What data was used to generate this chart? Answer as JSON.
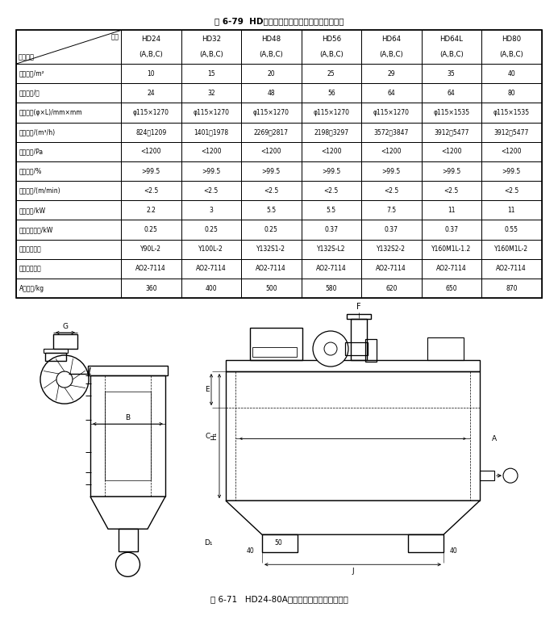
{
  "title": "表 6-79  HD型庫頂機械振打袋式除塵器技術性能",
  "col_headers": [
    "HD24\n(A,B,C)",
    "HD32\n(A,B,C)",
    "HD48\n(A,B,C)",
    "HD56\n(A,B,C)",
    "HD64\n(A,B,C)",
    "HD64L\n(A,B,C)",
    "HD80\n(A,B,C)"
  ],
  "row_labels": [
    "過濾面積/m²",
    "濾袋數量/個",
    "濾袋規格(φ×L)/mm×mm",
    "處理風量/(m³/h)",
    "設備阻力/Pa",
    "除塵效率/%",
    "過濾風速/(m/min)",
    "風機功率/kW",
    "清灰電機功率/kW",
    "風機電機型號",
    "清灰電機型號",
    "A型質量/kg"
  ],
  "table_data": [
    [
      "10",
      "15",
      "20",
      "25",
      "29",
      "35",
      "40"
    ],
    [
      "24",
      "32",
      "48",
      "56",
      "64",
      "64",
      "80"
    ],
    [
      "φ115×1270",
      "φ115×1270",
      "φ115×1270",
      "φ115×1270",
      "φ115×1270",
      "φ115×1535",
      "φ115×1535"
    ],
    [
      "824～1209",
      "1401～1978",
      "2269～2817",
      "2198～3297",
      "3572～3847",
      "3912～5477",
      "3912～5477"
    ],
    [
      "<1200",
      "<1200",
      "<1200",
      "<1200",
      "<1200",
      "<1200",
      "<1200"
    ],
    [
      ">99.5",
      ">99.5",
      ">99.5",
      ">99.5",
      ">99.5",
      ">99.5",
      ">99.5"
    ],
    [
      "<2.5",
      "<2.5",
      "<2.5",
      "<2.5",
      "<2.5",
      "<2.5",
      "<2.5"
    ],
    [
      "2.2",
      "3",
      "5.5",
      "5.5",
      "7.5",
      "11",
      "11"
    ],
    [
      "0.25",
      "0.25",
      "0.25",
      "0.37",
      "0.37",
      "0.37",
      "0.55"
    ],
    [
      "Y90L-2",
      "Y100L-2",
      "Y132S1-2",
      "Y132S-L2",
      "Y132S2-2",
      "Y160M1L-1.2",
      "Y160M1L-2"
    ],
    [
      "AO2-7114",
      "AO2-7114",
      "AO2-7114",
      "AO2-7114",
      "AO2-7114",
      "AO2-7114",
      "AO2-7114"
    ],
    [
      "360",
      "400",
      "500",
      "580",
      "620",
      "650",
      "870"
    ]
  ],
  "figure_caption": "圖 6-71   HD24-80A型庫頂機械振打袋式除塵器",
  "bg_color": "#ffffff"
}
